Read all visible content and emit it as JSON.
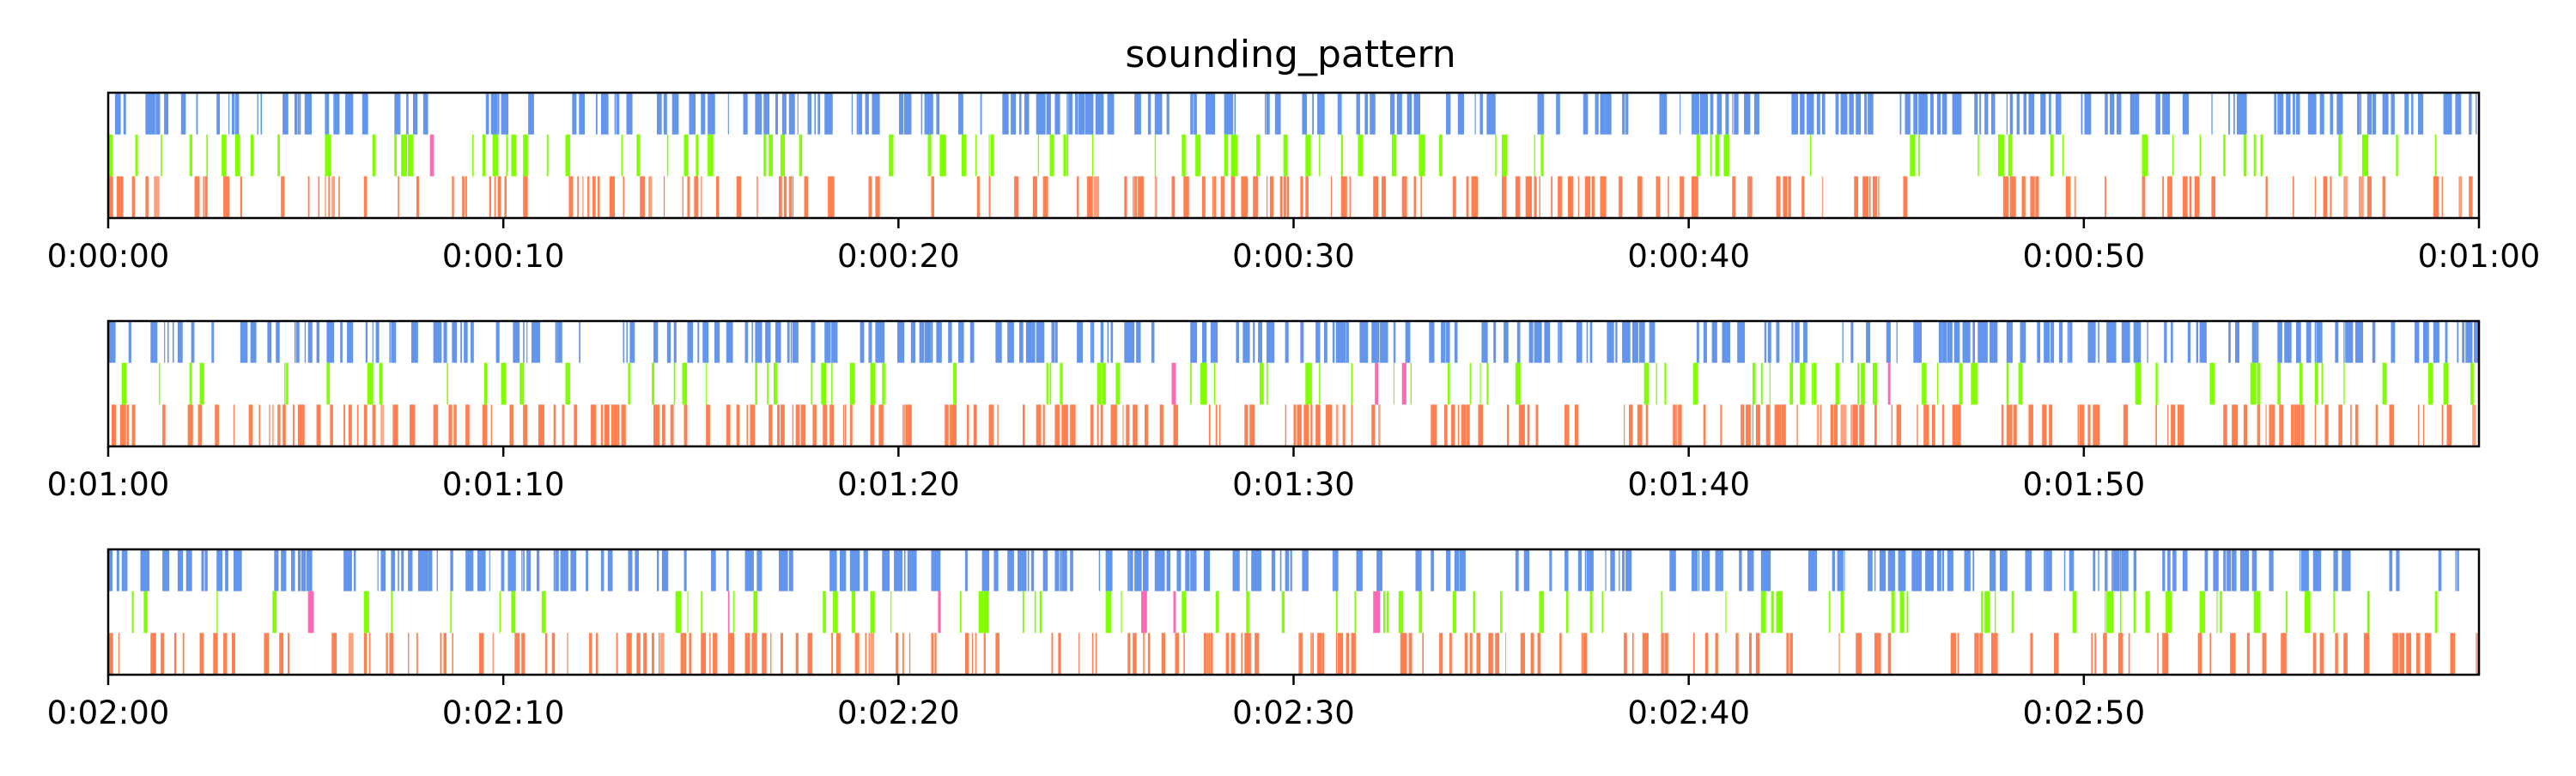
{
  "chart_data": {
    "type": "event_raster",
    "title": "sounding_pattern",
    "xlabel": "",
    "ylabel": "",
    "grid": false,
    "legend": "none",
    "tracks": [
      {
        "name": "top",
        "color": "#6495ED"
      },
      {
        "name": "middle",
        "color": "#7FFF00"
      },
      {
        "name": "bottom",
        "color": "#FF7F50"
      }
    ],
    "overlap_colors": {
      "top_bottom": "#FF69B4",
      "bottom_light": "#FFA07A"
    },
    "panels": [
      {
        "xlim": [
          0,
          60
        ],
        "tick_labels": [
          "0:00:00",
          "0:00:10",
          "0:00:20",
          "0:00:30",
          "0:00:40",
          "0:00:50",
          "0:01:00"
        ],
        "tick_values": [
          0,
          10,
          20,
          30,
          40,
          50,
          60
        ]
      },
      {
        "xlim": [
          60,
          120
        ],
        "tick_labels": [
          "0:01:00",
          "0:01:10",
          "0:01:20",
          "0:01:30",
          "0:01:40",
          "0:01:50"
        ],
        "tick_values": [
          60,
          70,
          80,
          90,
          100,
          110
        ]
      },
      {
        "xlim": [
          120,
          180
        ],
        "tick_labels": [
          "0:02:00",
          "0:02:10",
          "0:02:20",
          "0:02:30",
          "0:02:40",
          "0:02:50"
        ],
        "tick_values": [
          120,
          130,
          140,
          150,
          160,
          170
        ]
      }
    ]
  }
}
